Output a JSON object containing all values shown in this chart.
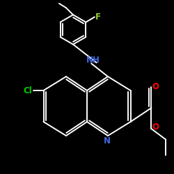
{
  "background_color": "#000000",
  "bond_color": "#ffffff",
  "atom_colors": {
    "F": "#9acd32",
    "Cl": "#00cc00",
    "N": "#4169e1",
    "O": "#ff0000"
  },
  "font_size": 8.5,
  "linewidth": 1.4,
  "figsize": [
    2.5,
    2.5
  ],
  "dpi": 100
}
